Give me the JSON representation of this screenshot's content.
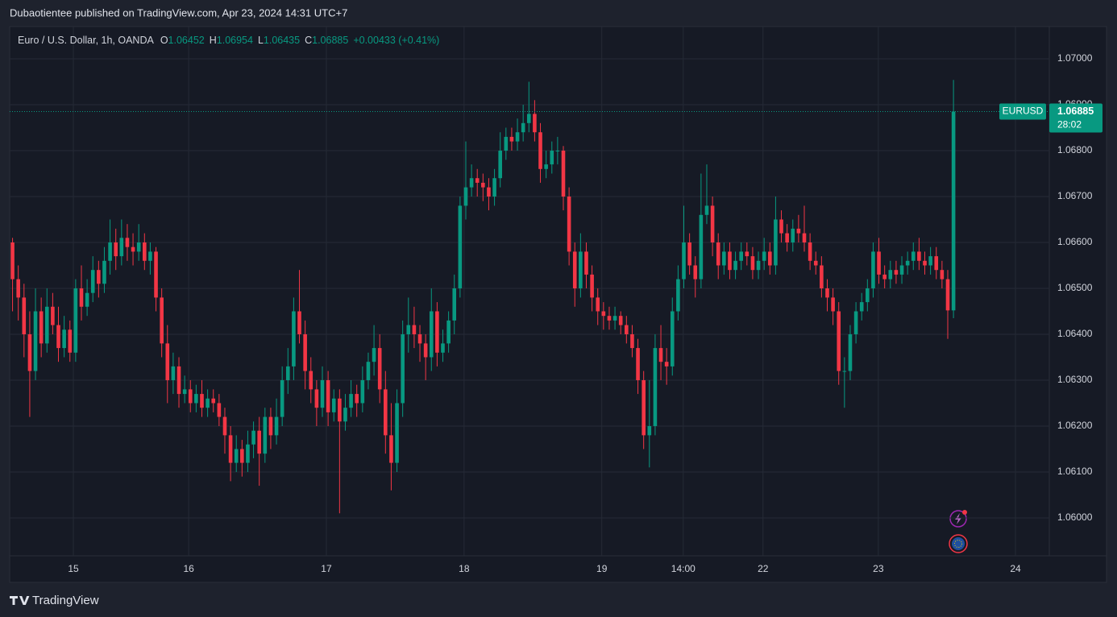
{
  "header": "Dubaotientee published on TradingView.com, Apr 23, 2024 14:31 UTC+7",
  "brand": "TradingView",
  "chart_data": {
    "type": "candlestick",
    "title": "Euro / U.S. Dollar, 1h, OANDA",
    "ohlc_labels": [
      "O",
      "H",
      "L",
      "C"
    ],
    "change": "+0.00433 (+0.41%)",
    "symbol": "EURUSD",
    "countdown": "28:02",
    "up_color": "#089981",
    "down_color": "#f23645",
    "grid": true,
    "xlim": [
      -0.5,
      180.7
    ],
    "xticks": [
      {
        "value": 10.6,
        "label": "15"
      },
      {
        "value": 30.7,
        "label": "16"
      },
      {
        "value": 54.7,
        "label": "17"
      },
      {
        "value": 78.7,
        "label": "18"
      },
      {
        "value": 102.7,
        "label": "19"
      },
      {
        "value": 116.9,
        "label": "14:00"
      },
      {
        "value": 130.8,
        "label": "22"
      },
      {
        "value": 150.9,
        "label": "23"
      },
      {
        "value": 174.8,
        "label": "24"
      }
    ],
    "ylim": [
      1.059175,
      1.070702
    ],
    "yticks": [
      {
        "value": 1.06,
        "label": "1.06000"
      },
      {
        "value": 1.061,
        "label": "1.06100"
      },
      {
        "value": 1.062,
        "label": "1.06200"
      },
      {
        "value": 1.063,
        "label": "1.06300"
      },
      {
        "value": 1.064,
        "label": "1.06400"
      },
      {
        "value": 1.065,
        "label": "1.06500"
      },
      {
        "value": 1.066,
        "label": "1.06600"
      },
      {
        "value": 1.067,
        "label": "1.06700"
      },
      {
        "value": 1.068,
        "label": "1.06800"
      },
      {
        "value": 1.069,
        "label": "1.06900"
      },
      {
        "value": 1.07,
        "label": "1.07000"
      }
    ],
    "open": [
      1.066,
      1.0652,
      1.0648,
      1.064,
      1.0632,
      1.0645,
      1.0638,
      1.0646,
      1.0642,
      1.0637,
      1.0641,
      1.0636,
      1.065,
      1.0646,
      1.0649,
      1.0654,
      1.0651,
      1.0656,
      1.066,
      1.0657,
      1.0661,
      1.0659,
      1.0658,
      1.066,
      1.0656,
      1.0658,
      1.0648,
      1.0638,
      1.063,
      1.0633,
      1.0627,
      1.0628,
      1.0625,
      1.0627,
      1.0624,
      1.0626,
      1.0625,
      1.0622,
      1.0618,
      1.0612,
      1.0615,
      1.0612,
      1.0616,
      1.0619,
      1.0614,
      1.0622,
      1.0618,
      1.0622,
      1.063,
      1.0633,
      1.0645,
      1.064,
      1.0632,
      1.0628,
      1.0624,
      1.063,
      1.0623,
      1.0626,
      1.0621,
      1.0624,
      1.0627,
      1.0625,
      1.063,
      1.0634,
      1.0637,
      1.0628,
      1.0618,
      1.0612,
      1.0625,
      1.064,
      1.0642,
      1.064,
      1.0638,
      1.0635,
      1.0645,
      1.0636,
      1.0638,
      1.0643,
      1.065,
      1.0668,
      1.0672,
      1.0674,
      1.0673,
      1.0672,
      1.067,
      1.0674,
      1.068,
      1.0683,
      1.0682,
      1.0684,
      1.0686,
      1.0688,
      1.0684,
      1.0676,
      1.0677,
      1.068,
      1.068,
      1.067,
      1.0658,
      1.065,
      1.0658,
      1.0653,
      1.0648,
      1.0645,
      1.0644,
      1.0643,
      1.0644,
      1.0642,
      1.064,
      1.0637,
      1.063,
      1.0618,
      1.062,
      1.0637,
      1.0634,
      1.0633,
      1.0645,
      1.0652,
      1.066,
      1.0655,
      1.0652,
      1.0666,
      1.0668,
      1.066,
      1.0655,
      1.0658,
      1.0654,
      1.0656,
      1.0658,
      1.0657,
      1.0654,
      1.0656,
      1.0658,
      1.0655,
      1.0665,
      1.0662,
      1.066,
      1.0663,
      1.0662,
      1.066,
      1.0656,
      1.0655,
      1.065,
      1.0648,
      1.0645,
      1.0632,
      1.0632,
      1.064,
      1.0645,
      1.0647,
      1.065,
      1.0658,
      1.0653,
      1.0652,
      1.0654,
      1.0653,
      1.0655,
      1.0656,
      1.0658,
      1.0656,
      1.0655,
      1.0657,
      1.0654,
      1.0652,
      1.06452
    ],
    "high": [
      1.0661,
      1.0655,
      1.0651,
      1.0645,
      1.065,
      1.0648,
      1.065,
      1.0649,
      1.0646,
      1.0644,
      1.0643,
      1.0652,
      1.0655,
      1.0652,
      1.0657,
      1.0656,
      1.0659,
      1.0665,
      1.0663,
      1.0665,
      1.0664,
      1.0662,
      1.0664,
      1.0662,
      1.066,
      1.0659,
      1.065,
      1.0642,
      1.0636,
      1.0635,
      1.0631,
      1.063,
      1.0629,
      1.063,
      1.0628,
      1.0628,
      1.0627,
      1.0624,
      1.062,
      1.0618,
      1.0617,
      1.0619,
      1.0621,
      1.0622,
      1.0624,
      1.0624,
      1.0626,
      1.0633,
      1.0637,
      1.0648,
      1.0654,
      1.0643,
      1.0635,
      1.063,
      1.0633,
      1.0632,
      1.0628,
      1.0628,
      1.0627,
      1.063,
      1.0629,
      1.0633,
      1.0636,
      1.0642,
      1.064,
      1.0632,
      1.0625,
      1.0628,
      1.0643,
      1.0648,
      1.0646,
      1.0642,
      1.064,
      1.065,
      1.0647,
      1.0641,
      1.0645,
      1.0653,
      1.067,
      1.0682,
      1.0677,
      1.0676,
      1.0675,
      1.0674,
      1.0676,
      1.0684,
      1.0685,
      1.0685,
      1.0687,
      1.069,
      1.0695,
      1.0691,
      1.0686,
      1.068,
      1.0682,
      1.0683,
      1.0681,
      1.0672,
      1.066,
      1.0662,
      1.066,
      1.0655,
      1.065,
      1.0647,
      1.0646,
      1.0646,
      1.0645,
      1.0644,
      1.0642,
      1.0639,
      1.0632,
      1.063,
      1.064,
      1.0642,
      1.0637,
      1.0648,
      1.0655,
      1.0668,
      1.0662,
      1.0657,
      1.0675,
      1.0677,
      1.067,
      1.0662,
      1.066,
      1.066,
      1.0658,
      1.066,
      1.066,
      1.0659,
      1.0658,
      1.0661,
      1.066,
      1.067,
      1.0667,
      1.0664,
      1.0665,
      1.0666,
      1.0668,
      1.0662,
      1.0658,
      1.0657,
      1.0652,
      1.065,
      1.0647,
      1.0635,
      1.0642,
      1.0647,
      1.0649,
      1.0652,
      1.066,
      1.0661,
      1.0655,
      1.0656,
      1.0656,
      1.0657,
      1.0658,
      1.066,
      1.0661,
      1.0658,
      1.0659,
      1.0659,
      1.0656,
      1.0654,
      1.06954
    ],
    "low": [
      1.0645,
      1.0643,
      1.0635,
      1.0622,
      1.063,
      1.0635,
      1.0636,
      1.064,
      1.0634,
      1.0635,
      1.0634,
      1.0634,
      1.0643,
      1.0644,
      1.0647,
      1.0648,
      1.0649,
      1.0653,
      1.0654,
      1.0655,
      1.0656,
      1.0655,
      1.0656,
      1.0654,
      1.0653,
      1.0645,
      1.0635,
      1.0625,
      1.0627,
      1.0624,
      1.0625,
      1.0623,
      1.0623,
      1.0622,
      1.0622,
      1.0623,
      1.062,
      1.0614,
      1.0608,
      1.061,
      1.0609,
      1.061,
      1.0613,
      1.0607,
      1.0612,
      1.0615,
      1.0616,
      1.062,
      1.0627,
      1.063,
      1.0638,
      1.0628,
      1.0625,
      1.062,
      1.0622,
      1.062,
      1.0621,
      1.0601,
      1.0619,
      1.0622,
      1.0622,
      1.0623,
      1.0628,
      1.0631,
      1.0625,
      1.0614,
      1.0606,
      1.061,
      1.0622,
      1.0636,
      1.0637,
      1.0634,
      1.063,
      1.0632,
      1.0633,
      1.0634,
      1.0636,
      1.064,
      1.0648,
      1.0665,
      1.067,
      1.067,
      1.0669,
      1.0667,
      1.0668,
      1.0672,
      1.0678,
      1.068,
      1.068,
      1.0682,
      1.0684,
      1.0682,
      1.0673,
      1.0674,
      1.0675,
      1.0677,
      1.0667,
      1.0655,
      1.0646,
      1.0648,
      1.065,
      1.0645,
      1.0642,
      1.0641,
      1.0641,
      1.0641,
      1.064,
      1.0638,
      1.0635,
      1.0627,
      1.0615,
      1.0611,
      1.0618,
      1.063,
      1.0629,
      1.0631,
      1.0643,
      1.065,
      1.0653,
      1.0648,
      1.065,
      1.0664,
      1.0657,
      1.0652,
      1.0653,
      1.0652,
      1.0652,
      1.0654,
      1.0655,
      1.0652,
      1.0652,
      1.0654,
      1.0653,
      1.0653,
      1.066,
      1.0658,
      1.0658,
      1.066,
      1.0658,
      1.0654,
      1.0653,
      1.0648,
      1.0645,
      1.0642,
      1.0629,
      1.0624,
      1.063,
      1.0638,
      1.0643,
      1.0645,
      1.0648,
      1.0651,
      1.065,
      1.065,
      1.0651,
      1.0651,
      1.0653,
      1.0654,
      1.0654,
      1.0653,
      1.0653,
      1.0652,
      1.065,
      1.0639,
      1.06435
    ],
    "close": [
      1.0652,
      1.0648,
      1.064,
      1.0632,
      1.0645,
      1.0638,
      1.0646,
      1.0642,
      1.0637,
      1.0641,
      1.0636,
      1.065,
      1.0646,
      1.0649,
      1.0654,
      1.0651,
      1.0656,
      1.066,
      1.0657,
      1.0661,
      1.0659,
      1.0658,
      1.066,
      1.0656,
      1.0658,
      1.0648,
      1.0638,
      1.063,
      1.0633,
      1.0627,
      1.0628,
      1.0625,
      1.0627,
      1.0624,
      1.0626,
      1.0625,
      1.0622,
      1.0618,
      1.0612,
      1.0615,
      1.0612,
      1.0616,
      1.0619,
      1.0614,
      1.0622,
      1.0618,
      1.0622,
      1.063,
      1.0633,
      1.0645,
      1.064,
      1.0632,
      1.0628,
      1.0624,
      1.063,
      1.0623,
      1.0626,
      1.0621,
      1.0624,
      1.0627,
      1.0625,
      1.063,
      1.0634,
      1.0637,
      1.0628,
      1.0618,
      1.0612,
      1.0625,
      1.064,
      1.0642,
      1.064,
      1.0638,
      1.0635,
      1.0645,
      1.0636,
      1.0638,
      1.0643,
      1.065,
      1.0668,
      1.0672,
      1.0674,
      1.0673,
      1.0672,
      1.067,
      1.0674,
      1.068,
      1.0683,
      1.0682,
      1.0684,
      1.0686,
      1.0688,
      1.0684,
      1.0676,
      1.0677,
      1.068,
      1.068,
      1.067,
      1.0658,
      1.065,
      1.0658,
      1.0653,
      1.0648,
      1.0645,
      1.0644,
      1.0643,
      1.0644,
      1.0642,
      1.064,
      1.0637,
      1.063,
      1.0618,
      1.062,
      1.0637,
      1.0634,
      1.0633,
      1.0645,
      1.0652,
      1.066,
      1.0655,
      1.0652,
      1.0666,
      1.0668,
      1.066,
      1.0655,
      1.0658,
      1.0654,
      1.0656,
      1.0658,
      1.0657,
      1.0654,
      1.0656,
      1.0658,
      1.0655,
      1.0665,
      1.0662,
      1.066,
      1.0663,
      1.0662,
      1.066,
      1.0656,
      1.0655,
      1.065,
      1.0648,
      1.0645,
      1.0632,
      1.0632,
      1.064,
      1.0645,
      1.0647,
      1.065,
      1.0658,
      1.0653,
      1.0652,
      1.0654,
      1.0653,
      1.0655,
      1.0656,
      1.0658,
      1.0656,
      1.0655,
      1.0657,
      1.0654,
      1.0652,
      1.06452,
      1.06885
    ]
  }
}
